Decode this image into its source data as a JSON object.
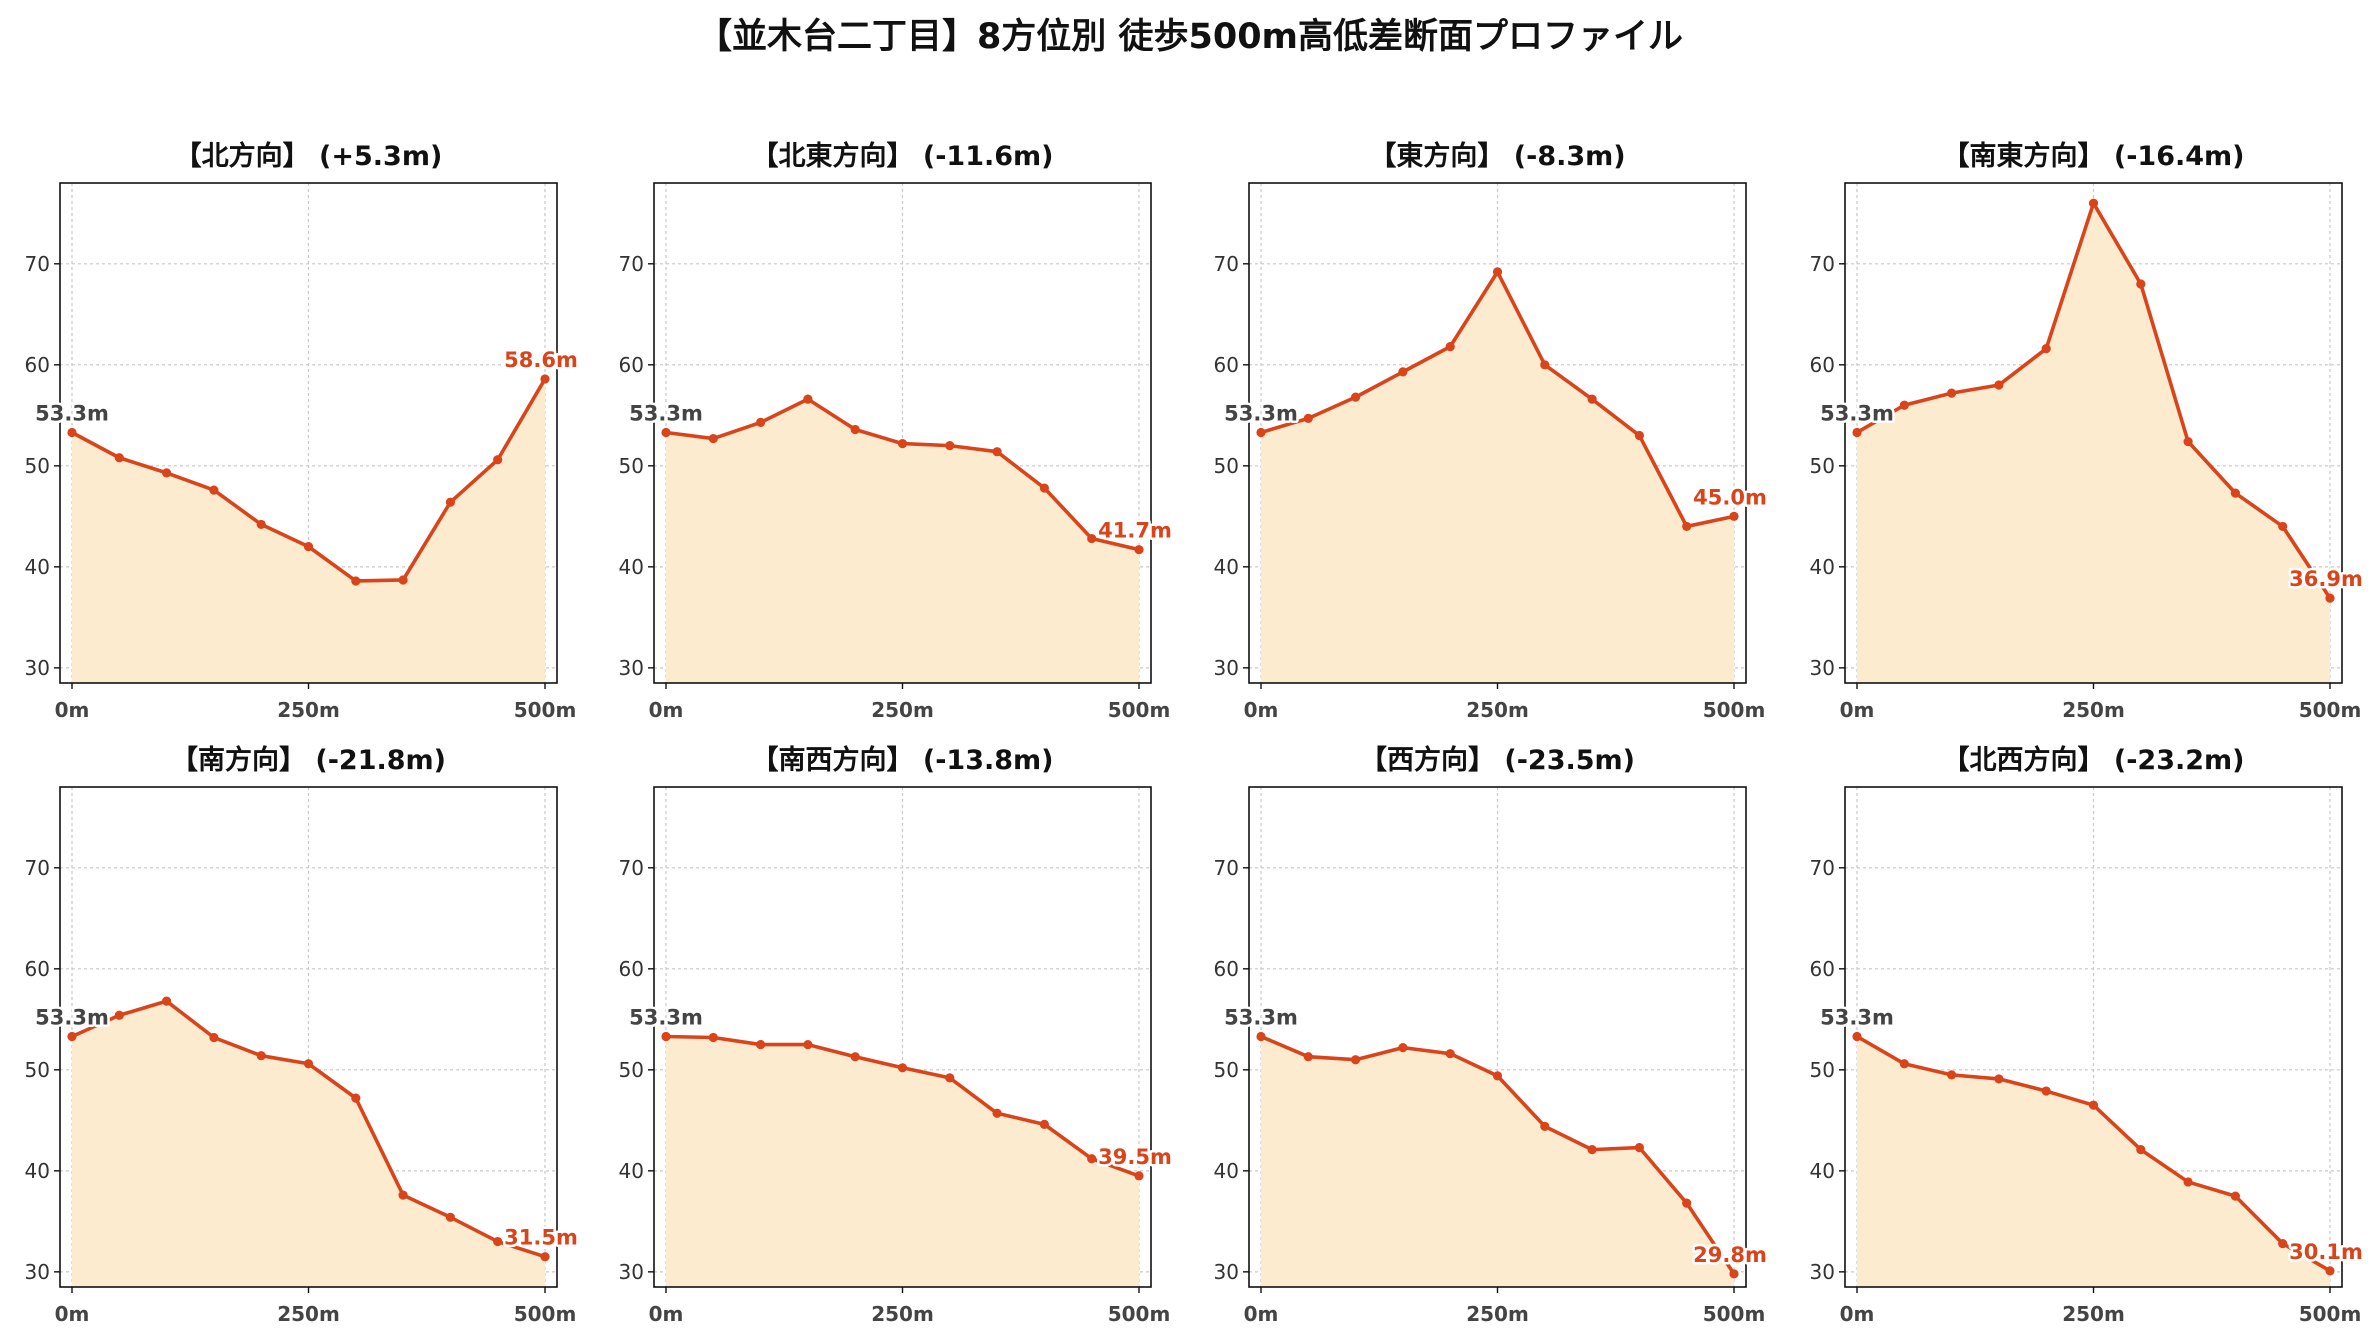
{
  "title": "【並木台二丁目】8方位別 徒歩500m高低差断面プロファイル",
  "colors": {
    "line": "#d9441a",
    "fill": "#fdebd0",
    "grid": "#c8c8c8",
    "start_label": "#444444"
  },
  "chart_data": [
    {
      "type": "area",
      "title": "【北方向】 (+5.3m)",
      "x": [
        0,
        50,
        100,
        150,
        200,
        250,
        300,
        350,
        400,
        450,
        500
      ],
      "xticks": [
        "0m",
        "250m",
        "500m"
      ],
      "ylim": [
        28.5,
        78
      ],
      "yticks": [
        30,
        40,
        50,
        60,
        70
      ],
      "grid": true,
      "values": [
        53.3,
        50.8,
        49.3,
        47.6,
        44.2,
        42.0,
        38.6,
        38.7,
        46.4,
        50.6,
        58.6
      ],
      "start_label": "53.3m",
      "end_label": "58.6m"
    },
    {
      "type": "area",
      "title": "【北東方向】 (-11.6m)",
      "x": [
        0,
        50,
        100,
        150,
        200,
        250,
        300,
        350,
        400,
        450,
        500
      ],
      "xticks": [
        "0m",
        "250m",
        "500m"
      ],
      "ylim": [
        28.5,
        78
      ],
      "yticks": [
        30,
        40,
        50,
        60,
        70
      ],
      "grid": true,
      "values": [
        53.3,
        52.7,
        54.3,
        56.6,
        53.6,
        52.2,
        52.0,
        51.4,
        47.8,
        42.8,
        41.7
      ],
      "start_label": "53.3m",
      "end_label": "41.7m"
    },
    {
      "type": "area",
      "title": "【東方向】 (-8.3m)",
      "x": [
        0,
        50,
        100,
        150,
        200,
        250,
        300,
        350,
        400,
        450,
        500
      ],
      "xticks": [
        "0m",
        "250m",
        "500m"
      ],
      "ylim": [
        28.5,
        78
      ],
      "yticks": [
        30,
        40,
        50,
        60,
        70
      ],
      "grid": true,
      "values": [
        53.3,
        54.7,
        56.8,
        59.3,
        61.8,
        69.2,
        60.0,
        56.6,
        53.0,
        44.0,
        45.0
      ],
      "start_label": "53.3m",
      "end_label": "45.0m"
    },
    {
      "type": "area",
      "title": "【南東方向】 (-16.4m)",
      "x": [
        0,
        50,
        100,
        150,
        200,
        250,
        300,
        350,
        400,
        450,
        500
      ],
      "xticks": [
        "0m",
        "250m",
        "500m"
      ],
      "ylim": [
        28.5,
        78
      ],
      "yticks": [
        30,
        40,
        50,
        60,
        70
      ],
      "grid": true,
      "values": [
        53.3,
        56.0,
        57.2,
        58.0,
        61.6,
        76.0,
        68.0,
        52.4,
        47.3,
        44.0,
        36.9
      ],
      "start_label": "53.3m",
      "end_label": "36.9m"
    },
    {
      "type": "area",
      "title": "【南方向】 (-21.8m)",
      "x": [
        0,
        50,
        100,
        150,
        200,
        250,
        300,
        350,
        400,
        450,
        500
      ],
      "xticks": [
        "0m",
        "250m",
        "500m"
      ],
      "ylim": [
        28.5,
        78
      ],
      "yticks": [
        30,
        40,
        50,
        60,
        70
      ],
      "grid": true,
      "values": [
        53.3,
        55.4,
        56.8,
        53.2,
        51.4,
        50.6,
        47.2,
        37.6,
        35.4,
        33.0,
        31.5
      ],
      "start_label": "53.3m",
      "end_label": "31.5m"
    },
    {
      "type": "area",
      "title": "【南西方向】 (-13.8m)",
      "x": [
        0,
        50,
        100,
        150,
        200,
        250,
        300,
        350,
        400,
        450,
        500
      ],
      "xticks": [
        "0m",
        "250m",
        "500m"
      ],
      "ylim": [
        28.5,
        78
      ],
      "yticks": [
        30,
        40,
        50,
        60,
        70
      ],
      "grid": true,
      "values": [
        53.3,
        53.2,
        52.5,
        52.5,
        51.3,
        50.2,
        49.2,
        45.7,
        44.6,
        41.2,
        39.5
      ],
      "start_label": "53.3m",
      "end_label": "39.5m"
    },
    {
      "type": "area",
      "title": "【西方向】 (-23.5m)",
      "x": [
        0,
        50,
        100,
        150,
        200,
        250,
        300,
        350,
        400,
        450,
        500
      ],
      "xticks": [
        "0m",
        "250m",
        "500m"
      ],
      "ylim": [
        28.5,
        78
      ],
      "yticks": [
        30,
        40,
        50,
        60,
        70
      ],
      "grid": true,
      "values": [
        53.3,
        51.3,
        51.0,
        52.2,
        51.6,
        49.4,
        44.4,
        42.1,
        42.3,
        36.8,
        29.8
      ],
      "start_label": "53.3m",
      "end_label": "29.8m"
    },
    {
      "type": "area",
      "title": "【北西方向】 (-23.2m)",
      "x": [
        0,
        50,
        100,
        150,
        200,
        250,
        300,
        350,
        400,
        450,
        500
      ],
      "xticks": [
        "0m",
        "250m",
        "500m"
      ],
      "ylim": [
        28.5,
        78
      ],
      "yticks": [
        30,
        40,
        50,
        60,
        70
      ],
      "grid": true,
      "values": [
        53.3,
        50.6,
        49.5,
        49.1,
        47.9,
        46.5,
        42.1,
        38.9,
        37.5,
        32.8,
        30.1
      ],
      "start_label": "53.3m",
      "end_label": "30.1m"
    }
  ]
}
